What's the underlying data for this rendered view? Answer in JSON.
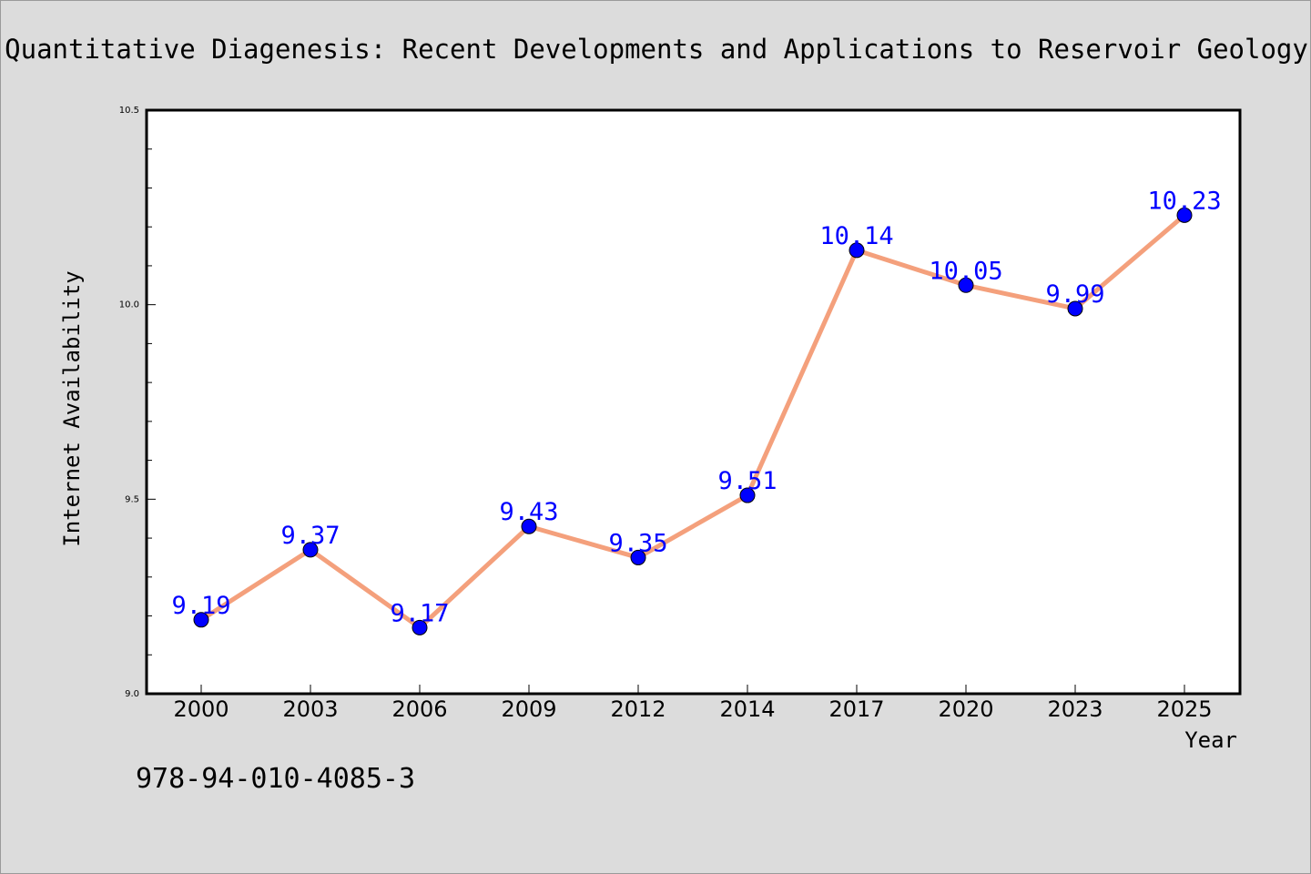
{
  "chart_data": {
    "type": "line",
    "title": "Quantitative Diagenesis: Recent Developments and Applications to Reservoir Geology",
    "xlabel": "Year",
    "ylabel": "Internet Availability",
    "categories": [
      "2000",
      "2003",
      "2006",
      "2009",
      "2012",
      "2014",
      "2017",
      "2020",
      "2023",
      "2025"
    ],
    "values": [
      9.19,
      9.37,
      9.17,
      9.43,
      9.35,
      9.51,
      10.14,
      10.05,
      9.99,
      10.23
    ],
    "data_labels": [
      "9.19",
      "9.37",
      "9.17",
      "9.43",
      "9.35",
      "9.51",
      "10.14",
      "10.05",
      "9.99",
      "10.23"
    ],
    "ylim": [
      9.0,
      10.5
    ],
    "yticks": [
      "9.0",
      "9.5",
      "10.0",
      "10.5"
    ],
    "grid": false,
    "colors": {
      "line": "#f4a07c",
      "marker": "#0000ff",
      "data_label": "#0000ff",
      "background": "#dcdcdc",
      "plot_background": "#ffffff"
    },
    "footnote": "978-94-010-4085-3"
  }
}
